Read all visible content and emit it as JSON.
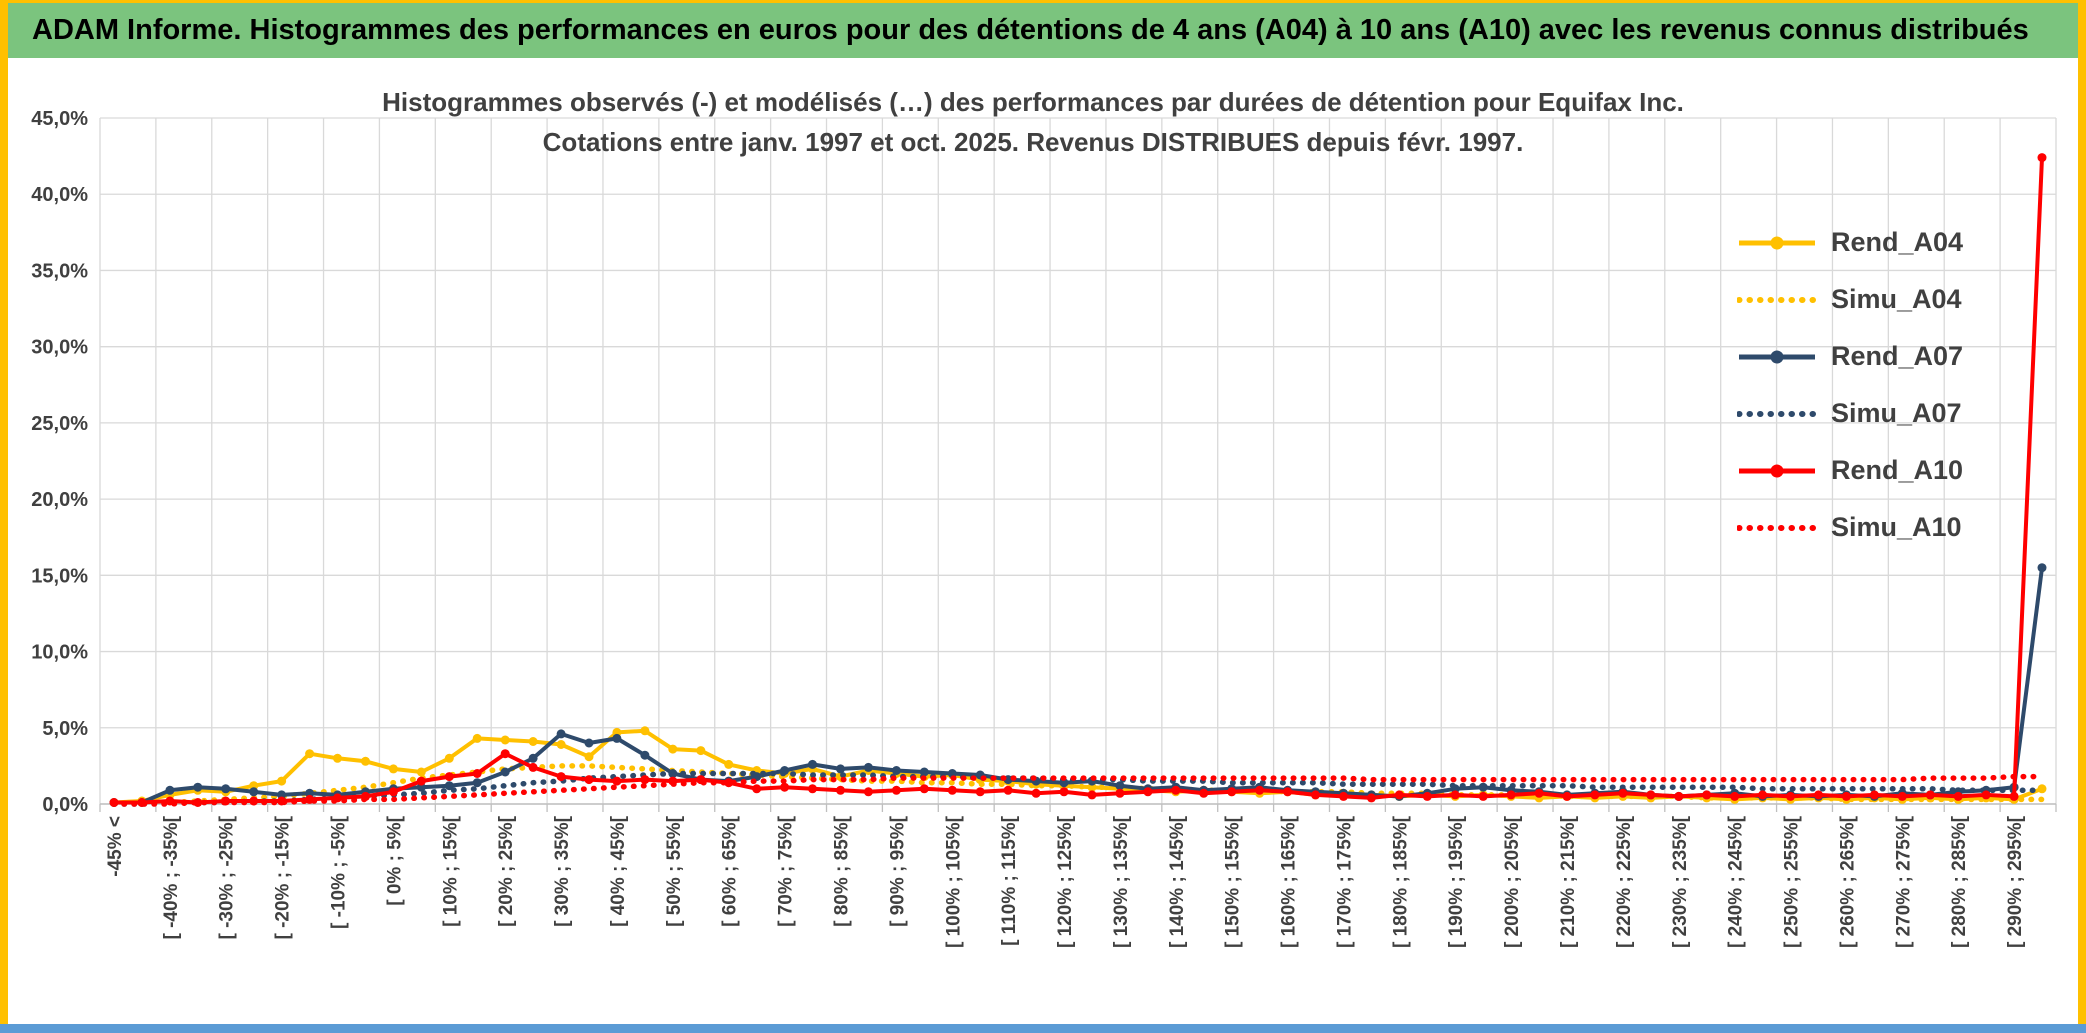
{
  "window": {
    "frame_color": "#FFC000",
    "bottom_bar_color": "#5B9BD5",
    "header": {
      "bg_color": "#7BC47E",
      "title": "ADAM Informe. Histogrammes des performances en euros pour des détentions de 4 ans (A04) à 10 ans (A10) avec les revenus connus distribués"
    }
  },
  "chart_data": {
    "type": "line",
    "title_lines": [
      "Histogrammes observés (-) et modélisés (…) des performances par durées de détention pour Equifax Inc.",
      "Cotations entre janv. 1997 et oct. 2025. Revenus DISTRIBUES depuis févr. 1997."
    ],
    "ylim": [
      0,
      45
    ],
    "y_tick_step": 5,
    "y_tick_labels": [
      "0,0%",
      "5,0%",
      "10,0%",
      "15,0%",
      "20,0%",
      "25,0%",
      "30,0%",
      "35,0%",
      "40,0%",
      "45,0%"
    ],
    "n_points": 70,
    "x_label_every": 2,
    "x_tick_labels": [
      "-45% <",
      "[ -40% ; -35%[",
      "[ -30% ; -25%[",
      "[ -20% ; -15%[",
      "[ -10% ; -5%[",
      "[ 0% ; 5%[",
      "[ 10% ; 15%[",
      "[ 20% ; 25%[",
      "[ 30% ; 35%[",
      "[ 40% ; 45%[",
      "[ 50% ; 55%[",
      "[ 60% ; 65%[",
      "[ 70% ; 75%[",
      "[ 80% ; 85%[",
      "[ 90% ; 95%[",
      "[ 100% ; 105%[",
      "[ 110% ; 115%[",
      "[ 120% ; 125%[",
      "[ 130% ; 135%[",
      "[ 140% ; 145%[",
      "[ 150% ; 155%[",
      "[ 160% ; 165%[",
      "[ 170% ; 175%[",
      "[ 180% ; 185%[",
      "[ 190% ; 195%[",
      "[ 200% ; 205%[",
      "[ 210% ; 215%[",
      "[ 220% ; 225%[",
      "[ 230% ; 235%[",
      "[ 240% ; 245%[",
      "[ 250% ; 255%[",
      "[ 260% ; 265%[",
      "[ 270% ; 275%[",
      "[ 280% ; 285%[",
      "[ 290% ; 295%["
    ],
    "grid": true,
    "grid_color": "#D9D9D9",
    "axis_color": "#BFBFBF",
    "text_color": "#404040",
    "legend_position": "inside-top-right",
    "series": [
      {
        "name": "Rend_A04",
        "color": "#FFC000",
        "style": "solid",
        "marker": true,
        "values": [
          0.1,
          0.2,
          0.6,
          0.9,
          0.8,
          1.2,
          1.5,
          3.3,
          3.0,
          2.8,
          2.3,
          2.1,
          3.0,
          4.3,
          4.2,
          4.1,
          3.9,
          3.1,
          4.7,
          4.8,
          3.6,
          3.5,
          2.6,
          2.2,
          2.0,
          2.3,
          1.8,
          2.2,
          2.0,
          1.8,
          1.9,
          1.6,
          1.5,
          1.3,
          1.2,
          1.1,
          1.0,
          0.9,
          0.8,
          0.9,
          0.8,
          0.7,
          0.8,
          0.6,
          0.7,
          0.6,
          0.5,
          0.6,
          0.5,
          0.6,
          0.5,
          0.4,
          0.5,
          0.4,
          0.5,
          0.4,
          0.5,
          0.4,
          0.3,
          0.4,
          0.3,
          0.4,
          0.3,
          0.4,
          0.3,
          0.4,
          0.3,
          0.4,
          0.3,
          1.0
        ]
      },
      {
        "name": "Simu_A04",
        "color": "#FFC000",
        "style": "dotted",
        "marker": false,
        "values": [
          0.0,
          0.1,
          0.1,
          0.2,
          0.3,
          0.4,
          0.5,
          0.7,
          0.9,
          1.1,
          1.4,
          1.7,
          1.9,
          2.1,
          2.3,
          2.4,
          2.5,
          2.5,
          2.4,
          2.3,
          2.2,
          2.1,
          2.0,
          1.9,
          1.8,
          1.7,
          1.6,
          1.5,
          1.5,
          1.4,
          1.4,
          1.3,
          1.3,
          1.2,
          1.2,
          1.1,
          1.1,
          1.0,
          1.0,
          0.9,
          0.9,
          0.9,
          0.8,
          0.8,
          0.8,
          0.7,
          0.7,
          0.7,
          0.6,
          0.6,
          0.6,
          0.6,
          0.5,
          0.5,
          0.5,
          0.5,
          0.5,
          0.4,
          0.4,
          0.4,
          0.4,
          0.4,
          0.3,
          0.3,
          0.3,
          0.3,
          0.3,
          0.3,
          0.3,
          0.3
        ]
      },
      {
        "name": "Rend_A07",
        "color": "#2E4A6B",
        "style": "solid",
        "marker": true,
        "values": [
          0.1,
          0.1,
          0.9,
          1.1,
          1.0,
          0.8,
          0.6,
          0.7,
          0.6,
          0.8,
          1.0,
          1.1,
          1.2,
          1.4,
          2.1,
          3.0,
          4.6,
          4.0,
          4.3,
          3.2,
          2.0,
          1.6,
          1.5,
          1.8,
          2.2,
          2.6,
          2.3,
          2.4,
          2.2,
          2.1,
          2.0,
          1.9,
          1.6,
          1.5,
          1.4,
          1.5,
          1.2,
          1.0,
          1.1,
          0.9,
          1.0,
          1.1,
          0.9,
          0.8,
          0.7,
          0.6,
          0.5,
          0.7,
          1.0,
          1.1,
          0.9,
          0.8,
          0.6,
          0.7,
          0.8,
          0.6,
          0.5,
          0.6,
          0.7,
          0.5,
          0.6,
          0.5,
          0.6,
          0.5,
          0.7,
          0.6,
          0.8,
          0.9,
          1.1,
          15.5
        ]
      },
      {
        "name": "Simu_A07",
        "color": "#2E4A6B",
        "style": "dotted",
        "marker": false,
        "values": [
          0.0,
          0.0,
          0.1,
          0.1,
          0.1,
          0.2,
          0.2,
          0.3,
          0.4,
          0.5,
          0.6,
          0.7,
          0.9,
          1.0,
          1.2,
          1.4,
          1.5,
          1.7,
          1.8,
          1.9,
          2.0,
          2.0,
          2.0,
          2.0,
          2.0,
          1.9,
          1.9,
          1.9,
          1.8,
          1.8,
          1.8,
          1.7,
          1.7,
          1.7,
          1.6,
          1.6,
          1.6,
          1.5,
          1.5,
          1.5,
          1.4,
          1.4,
          1.4,
          1.4,
          1.3,
          1.3,
          1.3,
          1.3,
          1.2,
          1.2,
          1.2,
          1.2,
          1.2,
          1.1,
          1.1,
          1.1,
          1.1,
          1.1,
          1.1,
          1.0,
          1.0,
          1.0,
          1.0,
          1.0,
          1.0,
          1.0,
          0.9,
          0.9,
          0.9,
          0.9
        ]
      },
      {
        "name": "Rend_A10",
        "color": "#FF0000",
        "style": "solid",
        "marker": true,
        "values": [
          0.1,
          0.1,
          0.2,
          0.1,
          0.2,
          0.2,
          0.2,
          0.3,
          0.4,
          0.5,
          0.8,
          1.5,
          1.8,
          2.0,
          3.3,
          2.4,
          1.8,
          1.6,
          1.5,
          1.6,
          1.5,
          1.6,
          1.4,
          1.0,
          1.1,
          1.0,
          0.9,
          0.8,
          0.9,
          1.0,
          0.9,
          0.8,
          0.9,
          0.7,
          0.8,
          0.6,
          0.7,
          0.8,
          0.9,
          0.7,
          0.8,
          0.9,
          0.8,
          0.6,
          0.5,
          0.4,
          0.6,
          0.5,
          0.6,
          0.5,
          0.6,
          0.7,
          0.5,
          0.6,
          0.7,
          0.6,
          0.5,
          0.6,
          0.5,
          0.6,
          0.5,
          0.6,
          0.5,
          0.6,
          0.5,
          0.6,
          0.5,
          0.6,
          0.5,
          42.4
        ]
      },
      {
        "name": "Simu_A10",
        "color": "#FF0000",
        "style": "dotted",
        "marker": false,
        "values": [
          0.0,
          0.0,
          0.0,
          0.1,
          0.1,
          0.1,
          0.1,
          0.2,
          0.2,
          0.3,
          0.3,
          0.4,
          0.5,
          0.6,
          0.7,
          0.8,
          0.9,
          1.0,
          1.1,
          1.2,
          1.3,
          1.4,
          1.4,
          1.5,
          1.5,
          1.6,
          1.6,
          1.6,
          1.7,
          1.7,
          1.7,
          1.7,
          1.7,
          1.7,
          1.7,
          1.7,
          1.7,
          1.7,
          1.7,
          1.7,
          1.7,
          1.7,
          1.7,
          1.7,
          1.7,
          1.6,
          1.6,
          1.6,
          1.6,
          1.6,
          1.6,
          1.6,
          1.6,
          1.6,
          1.6,
          1.6,
          1.6,
          1.6,
          1.6,
          1.6,
          1.6,
          1.6,
          1.6,
          1.6,
          1.6,
          1.7,
          1.7,
          1.7,
          1.8,
          1.8
        ]
      }
    ]
  }
}
